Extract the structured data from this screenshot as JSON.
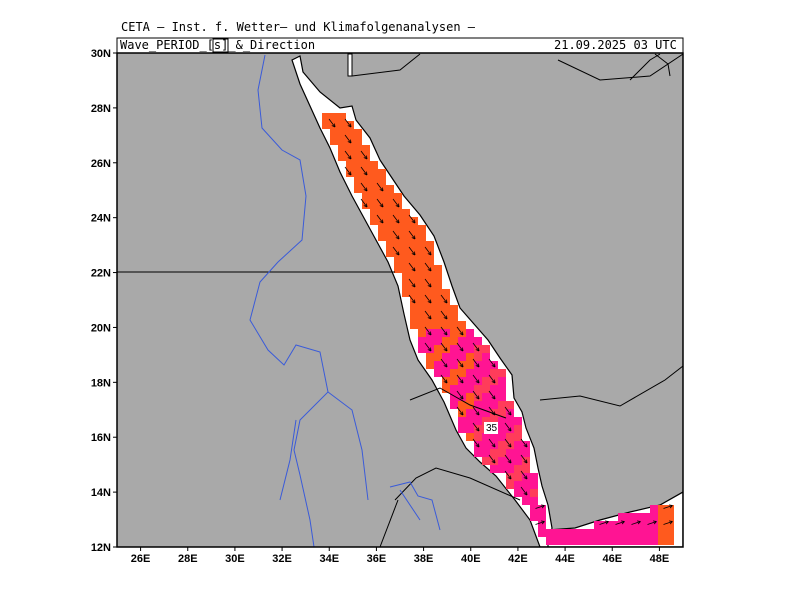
{
  "header": {
    "institute": "CETA – Inst. f. Wetter– und Klimafolgenanalysen –",
    "variable": "Wave_PERIOD_[s]_&_Direction",
    "datetime": "21.09.2025 03 UTC"
  },
  "map": {
    "lon_range": [
      25,
      49
    ],
    "lat_range": [
      12,
      30
    ],
    "lat_labels": [
      "30N",
      "28N",
      "26N",
      "24N",
      "22N",
      "20N",
      "18N",
      "16N",
      "14N",
      "12N"
    ],
    "lon_labels": [
      "26E",
      "28E",
      "30E",
      "32E",
      "34E",
      "36E",
      "38E",
      "40E",
      "42E",
      "44E",
      "46E",
      "48E"
    ],
    "annotation": "35",
    "colors": {
      "land": "#a9a9a9",
      "coast": "#000000",
      "river": "#3a5bd9",
      "sea_low": "#ff1493",
      "sea_mid": "#ff3c5a",
      "sea_high": "#ff5a1e",
      "arrow": "#000000"
    }
  }
}
